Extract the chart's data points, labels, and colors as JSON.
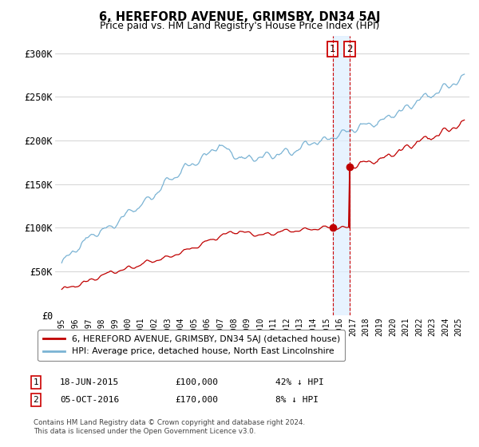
{
  "title": "6, HEREFORD AVENUE, GRIMSBY, DN34 5AJ",
  "subtitle": "Price paid vs. HM Land Registry's House Price Index (HPI)",
  "ylabel_ticks": [
    "£0",
    "£50K",
    "£100K",
    "£150K",
    "£200K",
    "£250K",
    "£300K"
  ],
  "ytick_values": [
    0,
    50000,
    100000,
    150000,
    200000,
    250000,
    300000
  ],
  "ylim": [
    0,
    320000
  ],
  "xlim_start": 1994.5,
  "xlim_end": 2025.8,
  "hpi_color": "#7ab3d4",
  "price_color": "#c00000",
  "vline_color": "#cc0000",
  "shade_color": "#ddeeff",
  "transaction1_year": 2015.46,
  "transaction2_year": 2016.75,
  "transaction1_price": 100000,
  "transaction2_price": 170000,
  "legend_entry1": "6, HEREFORD AVENUE, GRIMSBY, DN34 5AJ (detached house)",
  "legend_entry2": "HPI: Average price, detached house, North East Lincolnshire",
  "table_row1_num": "1",
  "table_row1_date": "18-JUN-2015",
  "table_row1_price": "£100,000",
  "table_row1_hpi": "42% ↓ HPI",
  "table_row2_num": "2",
  "table_row2_date": "05-OCT-2016",
  "table_row2_price": "£170,000",
  "table_row2_hpi": "8% ↓ HPI",
  "footnote": "Contains HM Land Registry data © Crown copyright and database right 2024.\nThis data is licensed under the Open Government Licence v3.0.",
  "bg_color": "#ffffff",
  "grid_color": "#cccccc"
}
